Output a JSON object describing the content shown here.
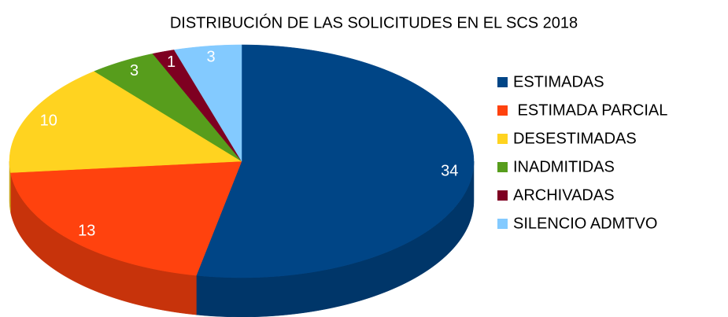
{
  "chart_data": {
    "type": "pie",
    "title": "DISTRIBUCIÓN DE LAS SOLICITUDES EN EL SCS 2018",
    "categories": [
      "ESTIMADAS",
      " ESTIMADA PARCIAL",
      "DESESTIMADAS",
      "INADMITIDAS",
      "ARCHIVADAS",
      "SILENCIO ADMTVO"
    ],
    "values": [
      34,
      13,
      10,
      3,
      1,
      3
    ],
    "colors": [
      "#004586",
      "#ff420e",
      "#ffd320",
      "#579d1c",
      "#7e0021",
      "#83caff"
    ],
    "legend": "right"
  }
}
